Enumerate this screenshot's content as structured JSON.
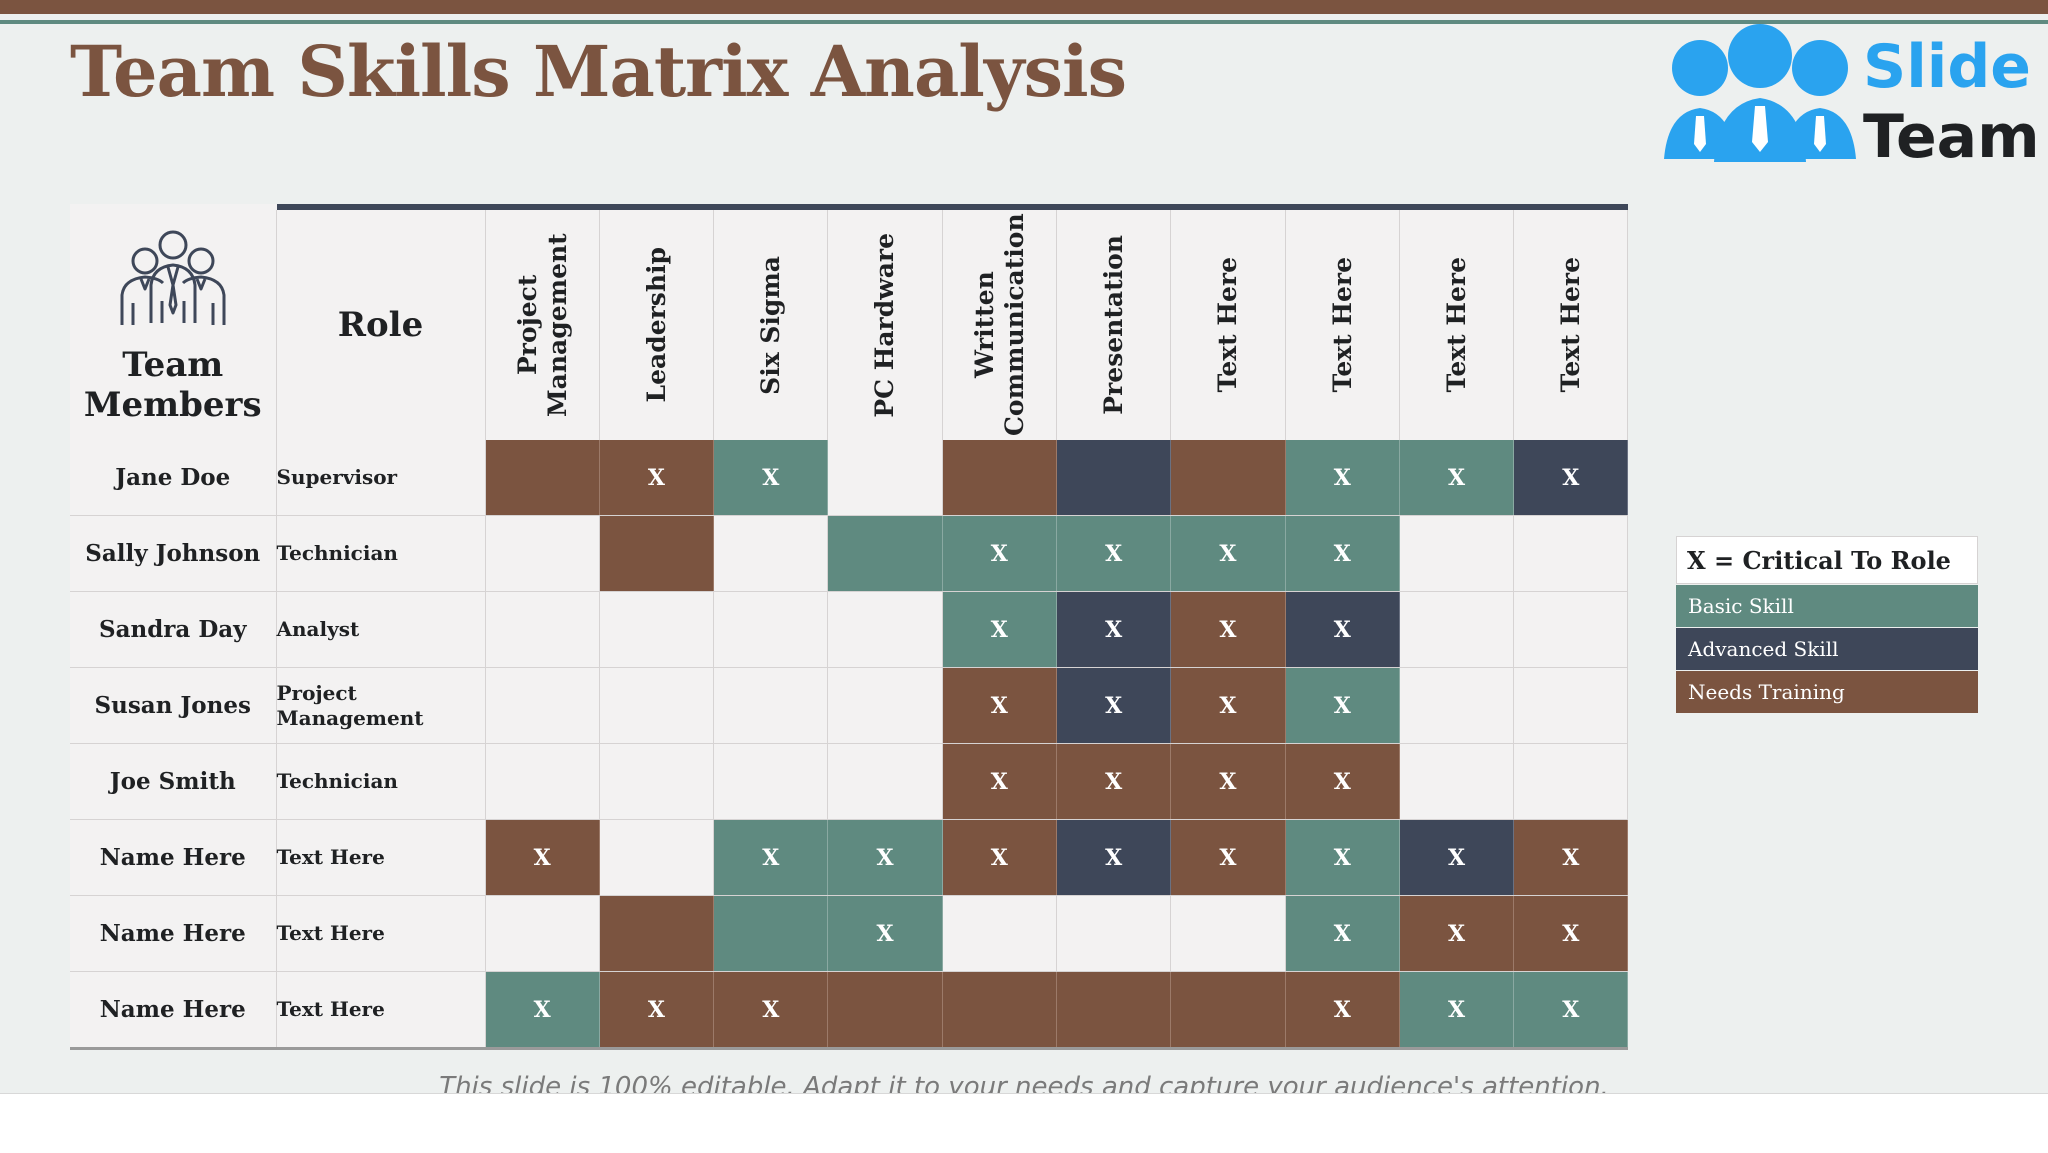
{
  "title": "Team Skills Matrix Analysis",
  "logo": {
    "line1": "Slide",
    "line2": "Team"
  },
  "header": {
    "members_label": "Team Members",
    "role_label": "Role"
  },
  "skills": [
    "Project Management",
    "Leadership",
    "Six Sigma",
    "PC Hardware",
    "Written Communication",
    "Presentation",
    "Text Here",
    "Text Here",
    "Text Here",
    "Text Here"
  ],
  "rows": [
    {
      "name": "Jane Doe",
      "role": "Supervisor",
      "cells": [
        {
          "level": "training",
          "x": ""
        },
        {
          "level": "training",
          "x": "X"
        },
        {
          "level": "basic",
          "x": "X"
        },
        {
          "level": "none",
          "x": ""
        },
        {
          "level": "training",
          "x": ""
        },
        {
          "level": "advanced",
          "x": ""
        },
        {
          "level": "training",
          "x": ""
        },
        {
          "level": "basic",
          "x": "X"
        },
        {
          "level": "basic",
          "x": "X"
        },
        {
          "level": "advanced",
          "x": "X"
        }
      ]
    },
    {
      "name": "Sally Johnson",
      "role": "Technician",
      "cells": [
        {
          "level": "none",
          "x": ""
        },
        {
          "level": "training",
          "x": ""
        },
        {
          "level": "none",
          "x": ""
        },
        {
          "level": "basic",
          "x": ""
        },
        {
          "level": "basic",
          "x": "X"
        },
        {
          "level": "basic",
          "x": "X"
        },
        {
          "level": "basic",
          "x": "X"
        },
        {
          "level": "basic",
          "x": "X"
        },
        {
          "level": "none",
          "x": ""
        },
        {
          "level": "none",
          "x": ""
        }
      ]
    },
    {
      "name": "Sandra Day",
      "role": "Analyst",
      "cells": [
        {
          "level": "none",
          "x": ""
        },
        {
          "level": "none",
          "x": ""
        },
        {
          "level": "none",
          "x": ""
        },
        {
          "level": "none",
          "x": ""
        },
        {
          "level": "basic",
          "x": "X"
        },
        {
          "level": "advanced",
          "x": "X"
        },
        {
          "level": "training",
          "x": "X"
        },
        {
          "level": "advanced",
          "x": "X"
        },
        {
          "level": "none",
          "x": ""
        },
        {
          "level": "none",
          "x": ""
        }
      ]
    },
    {
      "name": "Susan Jones",
      "role": "Project Management",
      "cells": [
        {
          "level": "none",
          "x": ""
        },
        {
          "level": "none",
          "x": ""
        },
        {
          "level": "none",
          "x": ""
        },
        {
          "level": "none",
          "x": ""
        },
        {
          "level": "training",
          "x": "X"
        },
        {
          "level": "advanced",
          "x": "X"
        },
        {
          "level": "training",
          "x": "X"
        },
        {
          "level": "basic",
          "x": "X"
        },
        {
          "level": "none",
          "x": ""
        },
        {
          "level": "none",
          "x": ""
        }
      ]
    },
    {
      "name": "Joe Smith",
      "role": "Technician",
      "cells": [
        {
          "level": "none",
          "x": ""
        },
        {
          "level": "none",
          "x": ""
        },
        {
          "level": "none",
          "x": ""
        },
        {
          "level": "none",
          "x": ""
        },
        {
          "level": "training",
          "x": "X"
        },
        {
          "level": "training",
          "x": "X"
        },
        {
          "level": "training",
          "x": "X"
        },
        {
          "level": "training",
          "x": "X"
        },
        {
          "level": "none",
          "x": ""
        },
        {
          "level": "none",
          "x": ""
        }
      ]
    },
    {
      "name": "Name Here",
      "role": "Text Here",
      "cells": [
        {
          "level": "training",
          "x": "X"
        },
        {
          "level": "none",
          "x": ""
        },
        {
          "level": "basic",
          "x": "X"
        },
        {
          "level": "basic",
          "x": "X"
        },
        {
          "level": "training",
          "x": "X"
        },
        {
          "level": "advanced",
          "x": "X"
        },
        {
          "level": "training",
          "x": "X"
        },
        {
          "level": "basic",
          "x": "X"
        },
        {
          "level": "advanced",
          "x": "X"
        },
        {
          "level": "training",
          "x": "X"
        }
      ]
    },
    {
      "name": "Name Here",
      "role": "Text Here",
      "cells": [
        {
          "level": "none",
          "x": ""
        },
        {
          "level": "training",
          "x": ""
        },
        {
          "level": "basic",
          "x": ""
        },
        {
          "level": "basic",
          "x": "X"
        },
        {
          "level": "none",
          "x": ""
        },
        {
          "level": "none",
          "x": ""
        },
        {
          "level": "none",
          "x": ""
        },
        {
          "level": "basic",
          "x": "X"
        },
        {
          "level": "training",
          "x": "X"
        },
        {
          "level": "training",
          "x": "X"
        }
      ]
    },
    {
      "name": "Name Here",
      "role": "Text Here",
      "cells": [
        {
          "level": "basic",
          "x": "X"
        },
        {
          "level": "training",
          "x": "X"
        },
        {
          "level": "training",
          "x": "X"
        },
        {
          "level": "training",
          "x": ""
        },
        {
          "level": "training",
          "x": ""
        },
        {
          "level": "training",
          "x": ""
        },
        {
          "level": "training",
          "x": ""
        },
        {
          "level": "training",
          "x": "X"
        },
        {
          "level": "basic",
          "x": "X"
        },
        {
          "level": "basic",
          "x": "X"
        }
      ]
    }
  ],
  "legend": {
    "title": "X = Critical To Role",
    "items": [
      {
        "label": "Basic Skill",
        "color": "#5f8a80"
      },
      {
        "label": "Advanced Skill",
        "color": "#3e4759"
      },
      {
        "label": "Needs Training",
        "color": "#7b5440"
      }
    ]
  },
  "colors": {
    "brown": "#7b5440",
    "teal": "#5f8a80",
    "navy": "#3e4759",
    "blank": "#f3f2f2"
  },
  "footer": "This slide is 100% editable. Adapt it to your needs and capture your audience's attention."
}
